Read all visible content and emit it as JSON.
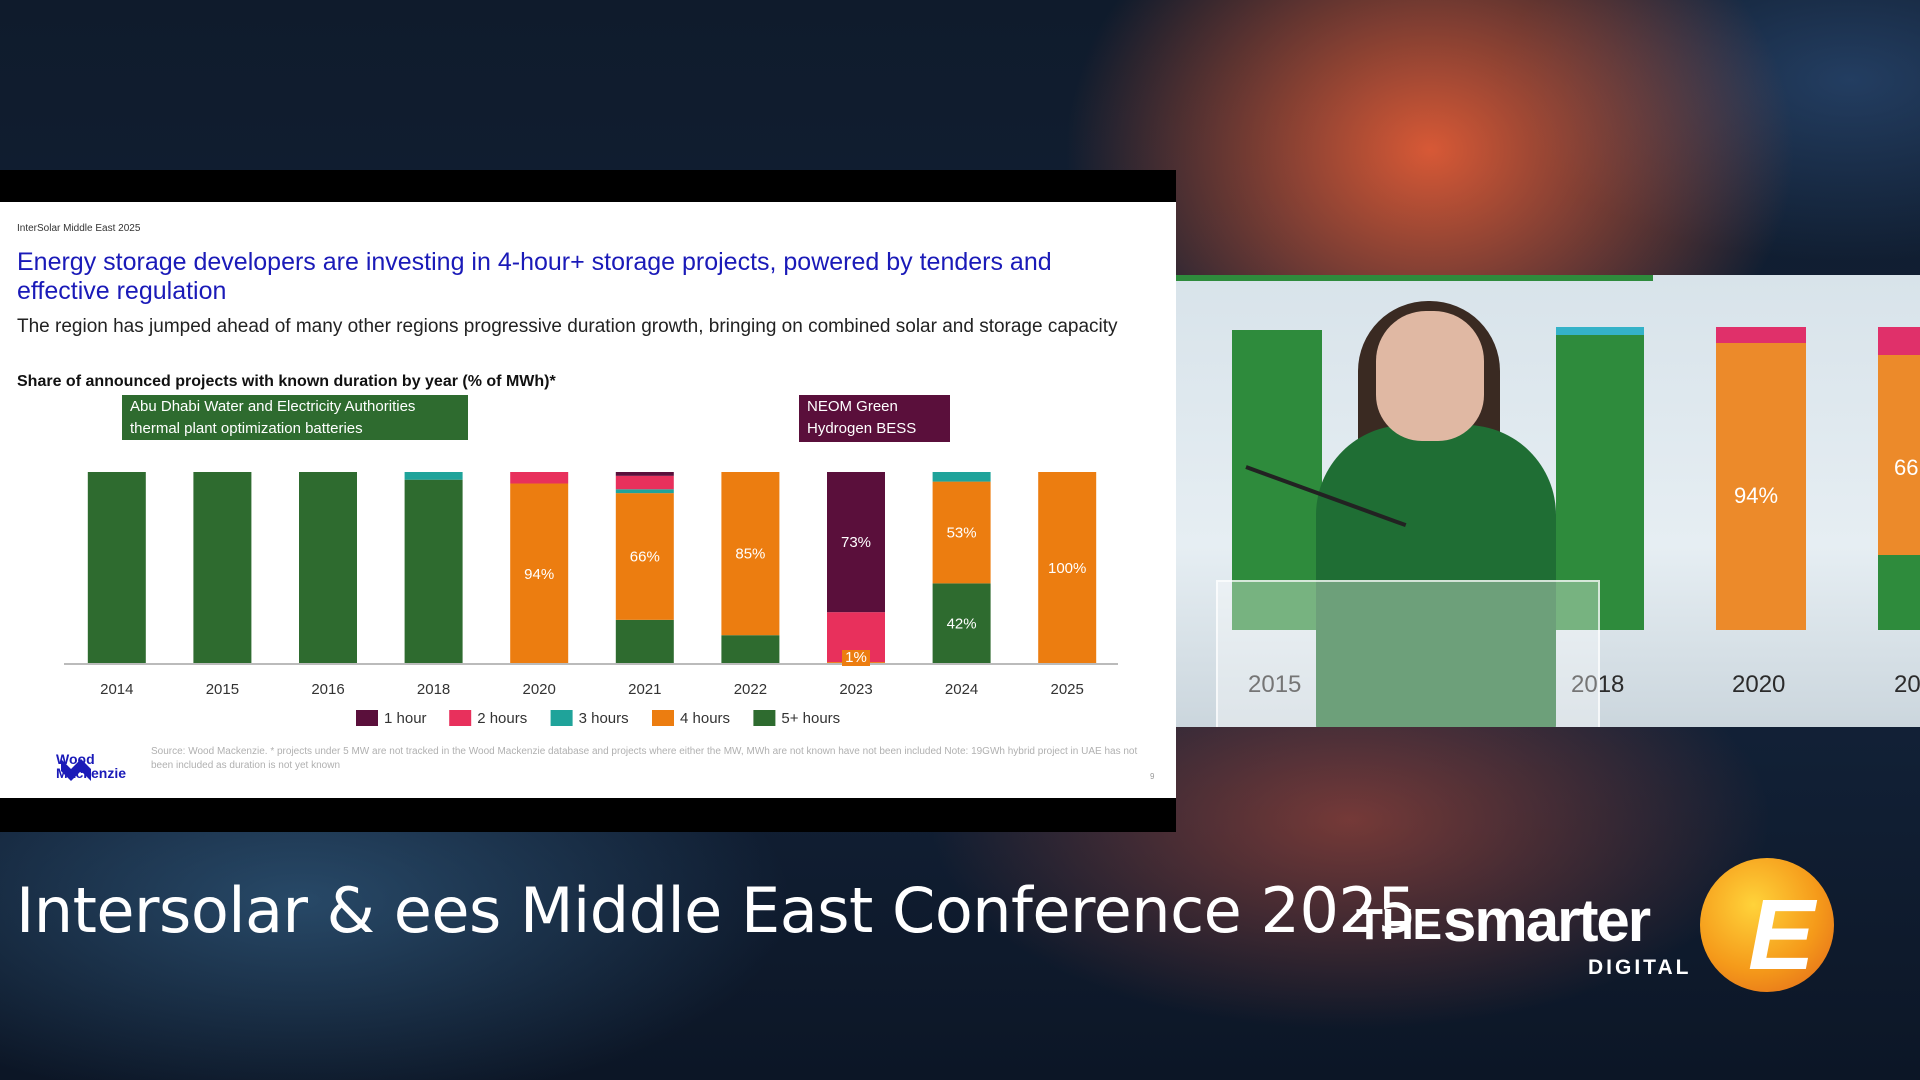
{
  "slide": {
    "eyebrow": "InterSolar Middle East 2025",
    "title": "Energy storage developers are investing in 4-hour+ storage projects, powered by tenders and effective regulation",
    "subtitle": "The region has jumped ahead of many other regions progressive duration growth, bringing on combined solar and storage capacity",
    "chart_title": "Share of announced projects with known duration by year (% of MWh)*",
    "callout_adwea": "Abu Dhabi Water and Electricity Authorities thermal plant optimization batteries",
    "callout_neom": "NEOM Green Hydrogen BESS",
    "logo_text": "Wood Mackenzie",
    "source_note": "Source: Wood Mackenzie. * projects under 5 MW are not tracked in the Wood Mackenzie database and projects where either the MW, MWh are not known have not been included Note: 19GWh hybrid project in UAE has not been included as duration is not yet known",
    "page_number": "9"
  },
  "colors": {
    "1 hour": "#5a0f3b",
    "2 hours": "#e8305c",
    "3 hours": "#1fa39a",
    "4 hours": "#ec7d10",
    "5+ hours": "#2e6b2f"
  },
  "chart_data": {
    "type": "bar",
    "stacked": true,
    "title": "Share of announced projects with known duration by year (% of MWh)*",
    "categories": [
      "2014",
      "2015",
      "2016",
      "2018",
      "2020",
      "2021",
      "2022",
      "2023",
      "2024",
      "2025"
    ],
    "series": [
      {
        "name": "1 hour",
        "values": [
          0,
          0,
          0,
          0,
          0,
          2,
          0,
          73,
          0,
          0
        ]
      },
      {
        "name": "2 hours",
        "values": [
          0,
          0,
          0,
          0,
          6,
          7,
          0,
          26,
          0,
          0
        ]
      },
      {
        "name": "3 hours",
        "values": [
          0,
          0,
          0,
          4,
          0,
          2,
          0,
          0,
          5,
          0
        ]
      },
      {
        "name": "4 hours",
        "values": [
          0,
          0,
          0,
          0,
          94,
          66,
          85,
          1,
          53,
          100
        ]
      },
      {
        "name": "5+ hours",
        "values": [
          100,
          100,
          100,
          96,
          0,
          23,
          15,
          0,
          42,
          0
        ]
      }
    ],
    "data_labels": [
      {
        "category": "2020",
        "series": "4 hours",
        "text": "94%"
      },
      {
        "category": "2021",
        "series": "4 hours",
        "text": "66%"
      },
      {
        "category": "2022",
        "series": "4 hours",
        "text": "85%"
      },
      {
        "category": "2023",
        "series": "1 hour",
        "text": "73%"
      },
      {
        "category": "2023",
        "series": "4 hours",
        "text": "1%"
      },
      {
        "category": "2024",
        "series": "4 hours",
        "text": "53%"
      },
      {
        "category": "2024",
        "series": "5+ hours",
        "text": "42%"
      },
      {
        "category": "2025",
        "series": "4 hours",
        "text": "100%"
      }
    ],
    "ylim": [
      0,
      100
    ],
    "legend": "bottom"
  },
  "camera": {
    "visible_years": [
      "2015",
      "2018",
      "2020",
      "20"
    ],
    "visible_labels": [
      "94%",
      "66"
    ]
  },
  "lower_third": {
    "conference_title": "Intersolar & ees Middle East Conference 2025",
    "brand_the": "THE",
    "brand_smarter": "smarter",
    "brand_digital": "DIGITAL",
    "brand_e": "E"
  }
}
